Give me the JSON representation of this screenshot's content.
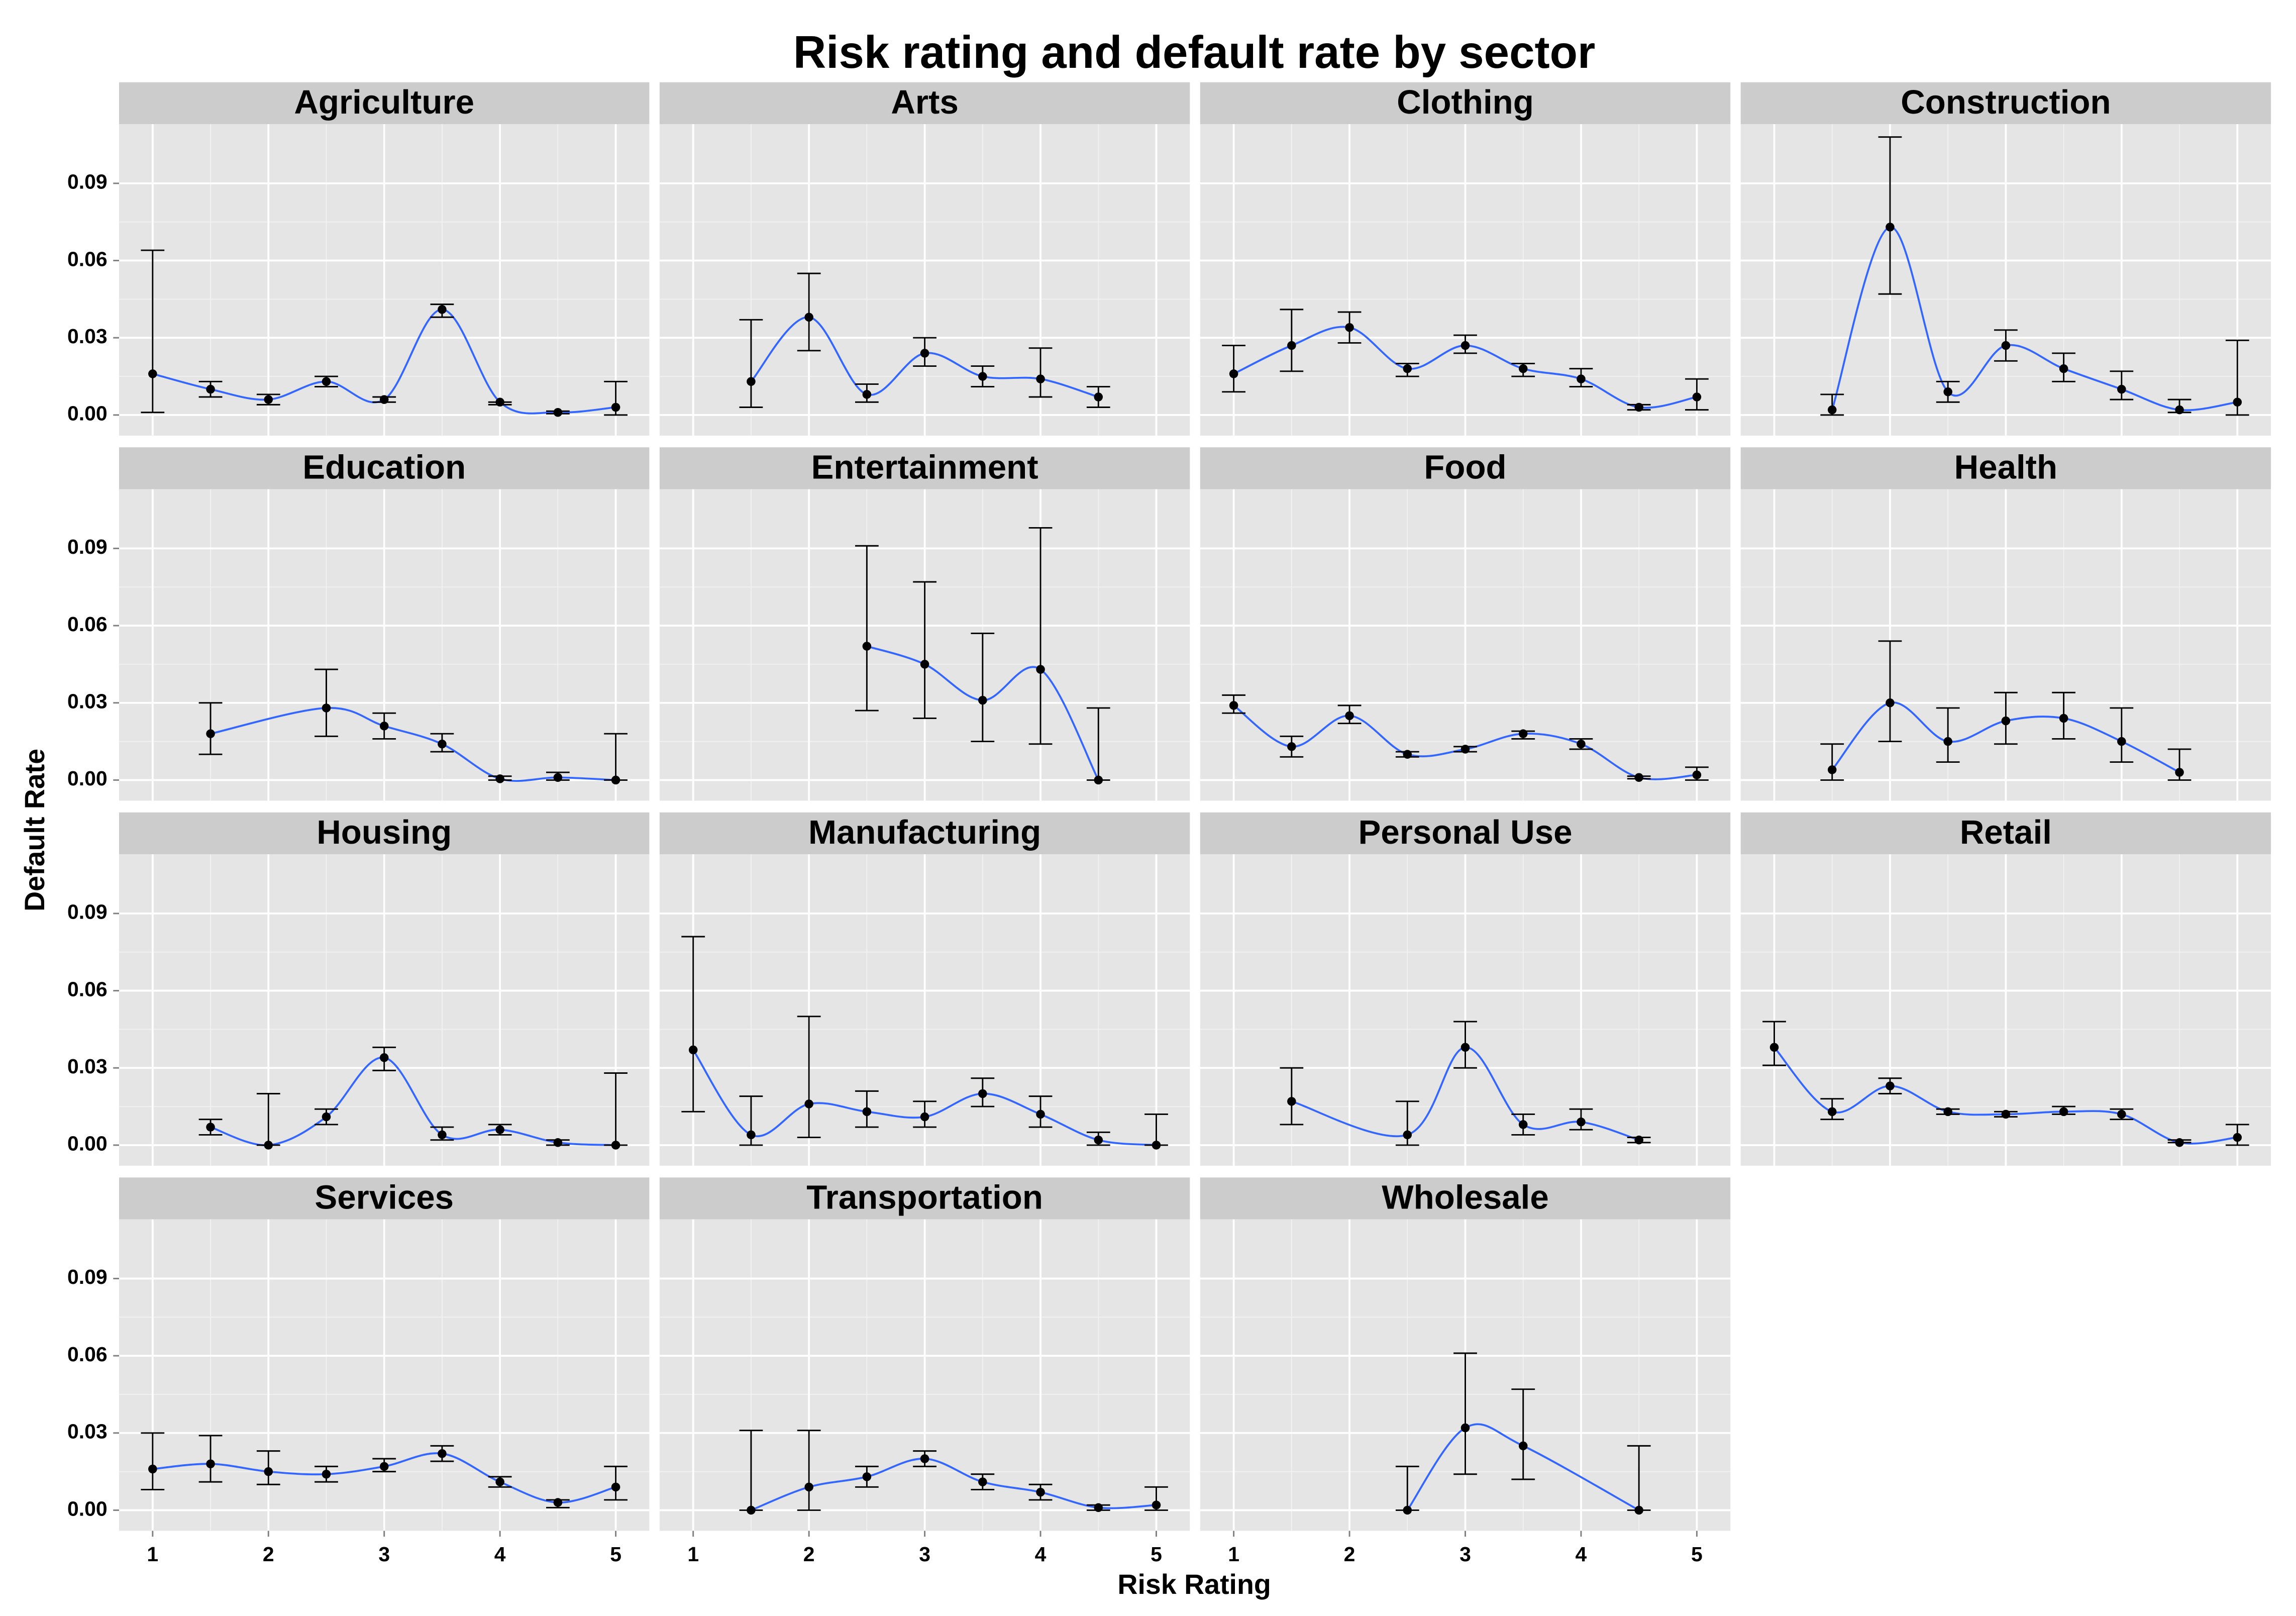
{
  "chart_data": {
    "type": "errorbar-facet",
    "title": "Risk rating and default rate by sector",
    "xlabel": "Risk Rating",
    "ylabel": "Default Rate",
    "xlim": [
      0.71,
      5.29
    ],
    "xticks": [
      1,
      2,
      3,
      4,
      5
    ],
    "ylim": [
      -0.008,
      0.113
    ],
    "yticks": [
      {
        "value": 0,
        "label": "0.00"
      },
      0.03,
      0.06,
      0.09
    ],
    "grid": true,
    "point_color": "#000000",
    "line_color": "#3366ff",
    "panels": [
      {
        "title": "Agriculture",
        "x": [
          1,
          1.5,
          2,
          2.5,
          3,
          3.5,
          4,
          4.5,
          5
        ],
        "values": [
          0.016,
          0.01,
          0.006,
          0.013,
          0.006,
          0.041,
          0.005,
          0.001,
          0.003
        ],
        "lower": [
          0.001,
          0.007,
          0.004,
          0.011,
          0.005,
          0.038,
          0.004,
          0.0005,
          0.0
        ],
        "upper": [
          0.064,
          0.013,
          0.008,
          0.015,
          0.007,
          0.043,
          0.005,
          0.0015,
          0.013
        ]
      },
      {
        "title": "Arts",
        "x": [
          1.5,
          2,
          2.5,
          3,
          3.5,
          4,
          4.5
        ],
        "values": [
          0.013,
          0.038,
          0.008,
          0.024,
          0.015,
          0.014,
          0.007
        ],
        "lower": [
          0.003,
          0.025,
          0.005,
          0.019,
          0.011,
          0.007,
          0.003
        ],
        "upper": [
          0.037,
          0.055,
          0.012,
          0.03,
          0.019,
          0.026,
          0.011
        ]
      },
      {
        "title": "Clothing",
        "x": [
          1,
          1.5,
          2,
          2.5,
          3,
          3.5,
          4,
          4.5,
          5
        ],
        "values": [
          0.016,
          0.027,
          0.034,
          0.018,
          0.027,
          0.018,
          0.014,
          0.003,
          0.007
        ],
        "lower": [
          0.009,
          0.017,
          0.028,
          0.015,
          0.024,
          0.015,
          0.011,
          0.002,
          0.002
        ],
        "upper": [
          0.027,
          0.041,
          0.04,
          0.02,
          0.031,
          0.02,
          0.018,
          0.004,
          0.014
        ]
      },
      {
        "title": "Construction",
        "x": [
          1.5,
          2,
          2.5,
          3,
          3.5,
          4,
          4.5,
          5
        ],
        "values": [
          0.002,
          0.073,
          0.009,
          0.027,
          0.018,
          0.01,
          0.002,
          0.005
        ],
        "lower": [
          0.0,
          0.047,
          0.005,
          0.021,
          0.013,
          0.006,
          0.001,
          0.0
        ],
        "upper": [
          0.008,
          0.108,
          0.013,
          0.033,
          0.024,
          0.017,
          0.006,
          0.029
        ]
      },
      {
        "title": "Education",
        "x": [
          1.5,
          2.5,
          3,
          3.5,
          4,
          4.5,
          5
        ],
        "values": [
          0.018,
          0.028,
          0.021,
          0.014,
          0.0005,
          0.001,
          0.0
        ],
        "lower": [
          0.01,
          0.017,
          0.016,
          0.011,
          0.0,
          0.0,
          0.0
        ],
        "upper": [
          0.03,
          0.043,
          0.026,
          0.018,
          0.0015,
          0.003,
          0.018
        ]
      },
      {
        "title": "Entertainment",
        "x": [
          2.5,
          3,
          3.5,
          4,
          4.5
        ],
        "values": [
          0.052,
          0.045,
          0.031,
          0.043,
          0.0
        ],
        "lower": [
          0.027,
          0.024,
          0.015,
          0.014,
          0.0
        ],
        "upper": [
          0.091,
          0.077,
          0.057,
          0.098,
          0.028
        ]
      },
      {
        "title": "Food",
        "x": [
          1,
          1.5,
          2,
          2.5,
          3,
          3.5,
          4,
          4.5,
          5
        ],
        "values": [
          0.029,
          0.013,
          0.025,
          0.01,
          0.012,
          0.018,
          0.014,
          0.001,
          0.002
        ],
        "lower": [
          0.026,
          0.009,
          0.022,
          0.009,
          0.011,
          0.016,
          0.012,
          0.0005,
          0.0
        ],
        "upper": [
          0.033,
          0.017,
          0.029,
          0.011,
          0.013,
          0.019,
          0.016,
          0.0015,
          0.005
        ]
      },
      {
        "title": "Health",
        "x": [
          1.5,
          2,
          2.5,
          3,
          3.5,
          4,
          4.5
        ],
        "values": [
          0.004,
          0.03,
          0.015,
          0.023,
          0.024,
          0.015,
          0.003
        ],
        "lower": [
          0.0,
          0.015,
          0.007,
          0.014,
          0.016,
          0.007,
          0.0
        ],
        "upper": [
          0.014,
          0.054,
          0.028,
          0.034,
          0.034,
          0.028,
          0.012
        ]
      },
      {
        "title": "Housing",
        "x": [
          1.5,
          2,
          2.5,
          3,
          3.5,
          4,
          4.5,
          5
        ],
        "values": [
          0.007,
          0.0,
          0.011,
          0.034,
          0.004,
          0.006,
          0.001,
          0.0
        ],
        "lower": [
          0.004,
          0.0,
          0.008,
          0.029,
          0.002,
          0.004,
          0.0,
          0.0
        ],
        "upper": [
          0.01,
          0.02,
          0.014,
          0.038,
          0.007,
          0.008,
          0.002,
          0.028
        ]
      },
      {
        "title": "Manufacturing",
        "x": [
          1,
          1.5,
          2,
          2.5,
          3,
          3.5,
          4,
          4.5,
          5
        ],
        "values": [
          0.037,
          0.004,
          0.016,
          0.013,
          0.011,
          0.02,
          0.012,
          0.002,
          0.0
        ],
        "lower": [
          0.013,
          0.0,
          0.003,
          0.007,
          0.007,
          0.015,
          0.007,
          0.0,
          0.0
        ],
        "upper": [
          0.081,
          0.019,
          0.05,
          0.021,
          0.017,
          0.026,
          0.019,
          0.005,
          0.012
        ]
      },
      {
        "title": "Personal Use",
        "x": [
          1.5,
          2.5,
          3,
          3.5,
          4,
          4.5
        ],
        "values": [
          0.017,
          0.004,
          0.038,
          0.008,
          0.009,
          0.002
        ],
        "lower": [
          0.008,
          0.0,
          0.03,
          0.004,
          0.006,
          0.001
        ],
        "upper": [
          0.03,
          0.017,
          0.048,
          0.012,
          0.014,
          0.003
        ]
      },
      {
        "title": "Retail",
        "x": [
          1,
          1.5,
          2,
          2.5,
          3,
          3.5,
          4,
          4.5,
          5
        ],
        "values": [
          0.038,
          0.013,
          0.023,
          0.013,
          0.012,
          0.013,
          0.012,
          0.001,
          0.003
        ],
        "lower": [
          0.031,
          0.01,
          0.02,
          0.012,
          0.011,
          0.012,
          0.01,
          0.001,
          0.0
        ],
        "upper": [
          0.048,
          0.018,
          0.026,
          0.014,
          0.013,
          0.015,
          0.014,
          0.002,
          0.008
        ]
      },
      {
        "title": "Services",
        "x": [
          1,
          1.5,
          2,
          2.5,
          3,
          3.5,
          4,
          4.5,
          5
        ],
        "values": [
          0.016,
          0.018,
          0.015,
          0.014,
          0.017,
          0.022,
          0.011,
          0.003,
          0.009
        ],
        "lower": [
          0.008,
          0.011,
          0.01,
          0.011,
          0.015,
          0.019,
          0.009,
          0.001,
          0.004
        ],
        "upper": [
          0.03,
          0.029,
          0.023,
          0.017,
          0.02,
          0.025,
          0.013,
          0.004,
          0.017
        ]
      },
      {
        "title": "Transportation",
        "x": [
          1.5,
          2,
          2.5,
          3,
          3.5,
          4,
          4.5,
          5
        ],
        "values": [
          0.0,
          0.009,
          0.013,
          0.02,
          0.011,
          0.007,
          0.001,
          0.002
        ],
        "lower": [
          0.0,
          0.0,
          0.009,
          0.017,
          0.008,
          0.004,
          0.0,
          0.0
        ],
        "upper": [
          0.031,
          0.031,
          0.017,
          0.023,
          0.014,
          0.01,
          0.002,
          0.009
        ]
      },
      {
        "title": "Wholesale",
        "x": [
          2.5,
          3,
          3.5,
          4.5
        ],
        "values": [
          0.0,
          0.032,
          0.025,
          0.0
        ],
        "lower": [
          0.0,
          0.014,
          0.012,
          0.0
        ],
        "upper": [
          0.017,
          0.061,
          0.047,
          0.025
        ]
      }
    ]
  }
}
